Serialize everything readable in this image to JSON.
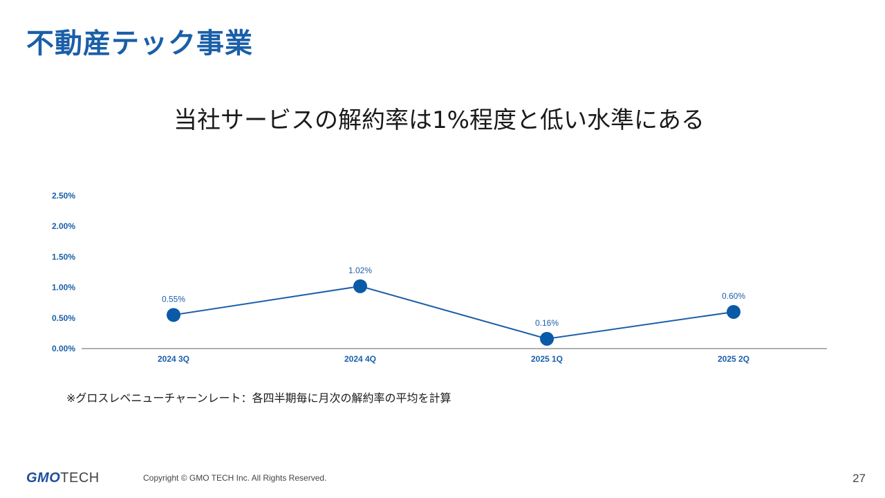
{
  "slide": {
    "title": "不動産テック事業",
    "headline": "当社サービスの解約率は1%程度と低い水準にある",
    "footnote": "※グロスレベニューチャーンレート：各四半期毎に月次の解約率の平均を計算",
    "logo_gmo": "GMO",
    "logo_tech": "TECH",
    "copyright": "Copyright © GMO TECH Inc. All Rights Reserved.",
    "page_number": "27"
  },
  "colors": {
    "title": "#1a5fa8",
    "series": "#1a5fa8",
    "marker": "#0a5aa8",
    "axis": "#7f7f7f"
  },
  "chart_data": {
    "type": "line",
    "categories": [
      "2024 3Q",
      "2024 4Q",
      "2025 1Q",
      "2025 2Q"
    ],
    "values": [
      0.55,
      1.02,
      0.16,
      0.6
    ],
    "data_labels": [
      "0.55%",
      "1.02%",
      "0.16%",
      "0.60%"
    ],
    "y_ticks": [
      "0.00%",
      "0.50%",
      "1.00%",
      "1.50%",
      "2.00%",
      "2.50%"
    ],
    "ylim": [
      0,
      2.5
    ],
    "y_tick_values": [
      0,
      0.5,
      1.0,
      1.5,
      2.0,
      2.5
    ],
    "grid": false,
    "markers": true
  }
}
